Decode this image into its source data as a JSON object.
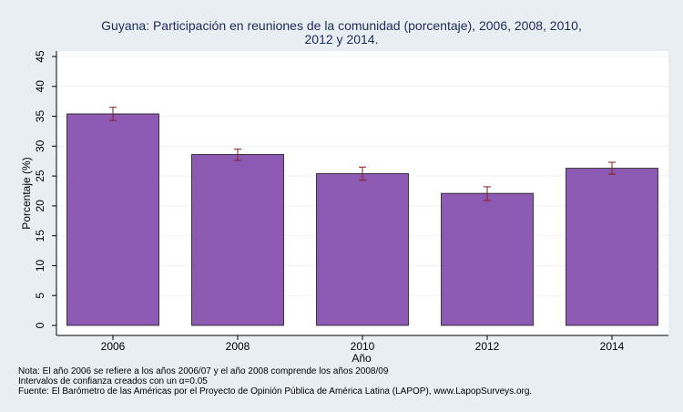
{
  "chart_data": {
    "type": "bar",
    "title_lines": [
      "Guyana: Participación en reuniones de la comunidad (porcentaje), 2006, 2008, 2010,",
      "2012 y 2014."
    ],
    "xlabel": "Año",
    "ylabel": "Porcentaje (%)",
    "categories": [
      "2006",
      "2008",
      "2010",
      "2012",
      "2014"
    ],
    "values": [
      35.4,
      28.6,
      25.4,
      22.1,
      26.3
    ],
    "ci_low": [
      34.3,
      27.6,
      24.3,
      20.9,
      25.3
    ],
    "ci_high": [
      36.5,
      29.5,
      26.5,
      23.2,
      27.3
    ],
    "ylim": [
      0,
      45
    ],
    "yticks": [
      0,
      5,
      10,
      15,
      20,
      25,
      30,
      35,
      40,
      45
    ],
    "grid": true,
    "bar_color": "#8c59b3",
    "errorbar_color": "#8b1a1a",
    "plot_bg": "#ffffff",
    "outer_bg": "#e9eef2"
  },
  "notes": {
    "line1": "Nota: El año 2006 se refiere a los años 2006/07 y el año 2008 comprende los años 2008/09",
    "line2": "Intervalos de confianza creados con un α=0.05",
    "line3": "Fuente: El Barómetro de las Américas por el Proyecto de Opinión Pública de América Latina (LAPOP), www.LapopSurveys.org."
  }
}
